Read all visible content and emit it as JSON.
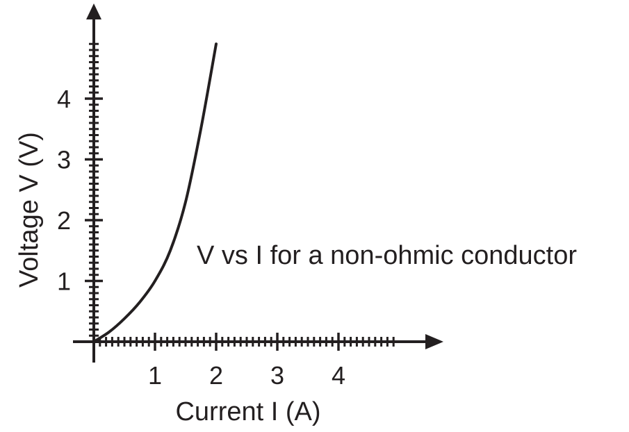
{
  "chart_data": {
    "type": "line",
    "title": "",
    "xlabel": "Current I (A)",
    "ylabel": "Voltage V (V)",
    "xlim": [
      0,
      5
    ],
    "ylim": [
      0,
      5
    ],
    "x_ticks": [
      "1",
      "2",
      "3",
      "4"
    ],
    "y_ticks": [
      "1",
      "2",
      "3",
      "4"
    ],
    "minor_ticks_per_unit": 10,
    "grid": false,
    "annotation": "V vs I for a non-ohmic conductor",
    "series": [
      {
        "x": [
          0,
          0.25,
          0.5,
          0.75,
          1.0,
          1.25,
          1.5,
          1.75,
          2.0
        ],
        "y": [
          0,
          0.16,
          0.38,
          0.65,
          1.0,
          1.5,
          2.3,
          3.5,
          4.9
        ],
        "color": "#231f20"
      }
    ],
    "colors": {
      "ink": "#231f20"
    }
  }
}
